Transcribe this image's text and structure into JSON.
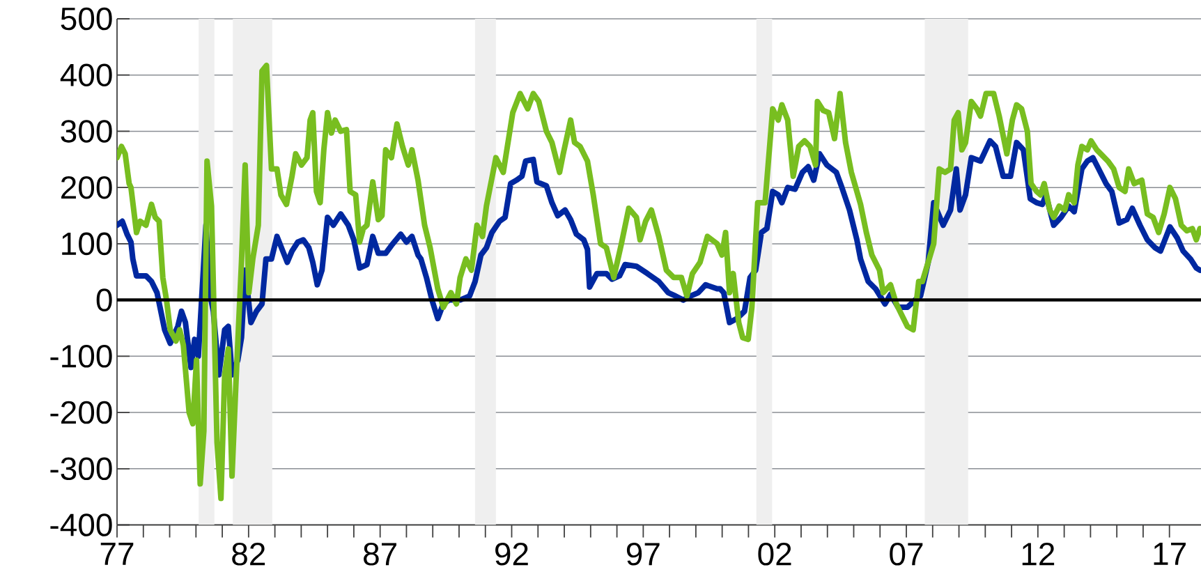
{
  "chart_data": {
    "type": "line",
    "xlim": [
      1977,
      2018.2
    ],
    "ylim": [
      -400,
      500
    ],
    "xticks": [
      {
        "value": 1977,
        "label": "77"
      },
      {
        "value": 1982,
        "label": "82"
      },
      {
        "value": 1987,
        "label": "87"
      },
      {
        "value": 1992,
        "label": "92"
      },
      {
        "value": 1997,
        "label": "97"
      },
      {
        "value": 2002,
        "label": "02"
      },
      {
        "value": 2007,
        "label": "07"
      },
      {
        "value": 2012,
        "label": "12"
      },
      {
        "value": 2017,
        "label": "17"
      }
    ],
    "yticks": [
      -400,
      -300,
      -200,
      -100,
      0,
      100,
      200,
      300,
      400,
      500
    ],
    "grid": "y",
    "bands": [
      {
        "axis": "x",
        "from": 1980.1,
        "to": 1980.7,
        "label": null,
        "color": "#efefef"
      },
      {
        "axis": "x",
        "from": 1981.4,
        "to": 1982.9,
        "label": null,
        "color": "#efefef"
      },
      {
        "axis": "x",
        "from": 1990.6,
        "to": 1991.4,
        "label": null,
        "color": "#efefef"
      },
      {
        "axis": "x",
        "from": 2001.3,
        "to": 2001.9,
        "label": null,
        "color": "#efefef"
      },
      {
        "axis": "x",
        "from": 2007.7,
        "to": 2009.35,
        "label": null,
        "color": "#efefef"
      }
    ],
    "ref_lines": [
      {
        "axis": "y",
        "value": 0,
        "label": null,
        "color": "#000000"
      }
    ],
    "series": [
      {
        "color": "#0028a0",
        "x": [
          1977.0,
          1977.2,
          1977.38,
          1977.53,
          1977.6,
          1977.74,
          1978.1,
          1978.31,
          1978.52,
          1978.81,
          1979.02,
          1979.31,
          1979.45,
          1979.6,
          1979.81,
          1979.95,
          1980.09,
          1980.38,
          1980.52,
          1980.66,
          1980.87,
          1981.09,
          1981.23,
          1981.37,
          1981.59,
          1981.73,
          1981.87,
          1982.09,
          1982.3,
          1982.51,
          1982.66,
          1982.87,
          1983.08,
          1983.3,
          1983.47,
          1983.65,
          1983.87,
          1984.08,
          1984.29,
          1984.44,
          1984.61,
          1984.79,
          1985.0,
          1985.22,
          1985.5,
          1985.79,
          1986.0,
          1986.22,
          1986.5,
          1986.72,
          1986.93,
          1987.21,
          1987.43,
          1987.78,
          1988.0,
          1988.21,
          1988.44,
          1988.55,
          1988.76,
          1988.97,
          1989.19,
          1989.4,
          1989.62,
          1990.04,
          1990.4,
          1990.61,
          1990.83,
          1991.04,
          1991.25,
          1991.54,
          1991.75,
          1991.96,
          1992.18,
          1992.39,
          1992.53,
          1992.82,
          1992.96,
          1993.32,
          1993.53,
          1993.75,
          1994.03,
          1994.24,
          1994.46,
          1994.74,
          1994.88,
          1994.96,
          1995.24,
          1995.6,
          1995.81,
          1996.1,
          1996.31,
          1996.74,
          1997.16,
          1997.59,
          1997.95,
          1998.23,
          1998.52,
          1998.8,
          1999.09,
          1999.37,
          1999.81,
          1999.92,
          2000.06,
          2000.28,
          2000.56,
          2000.85,
          2001.06,
          2001.27,
          2001.49,
          2001.7,
          2001.92,
          2002.13,
          2002.27,
          2002.49,
          2002.77,
          2003.05,
          2003.27,
          2003.48,
          2003.7,
          2003.98,
          2004.34,
          2004.55,
          2004.84,
          2005.12,
          2005.26,
          2005.55,
          2005.83,
          2006.19,
          2006.4,
          2006.69,
          2007.04,
          2007.33,
          2007.54,
          2007.83,
          2008.04,
          2008.4,
          2008.68,
          2008.9,
          2009.04,
          2009.25,
          2009.47,
          2009.82,
          2010.18,
          2010.39,
          2010.68,
          2010.96,
          2011.19,
          2011.45,
          2011.71,
          2011.95,
          2012.17,
          2012.31,
          2012.6,
          2012.88,
          2013.17,
          2013.38,
          2013.67,
          2013.88,
          2014.09,
          2014.31,
          2014.59,
          2014.81,
          2015.09,
          2015.38,
          2015.59,
          2015.88,
          2016.16,
          2016.45,
          2016.66,
          2017.02,
          2017.3,
          2017.52,
          2017.8,
          2018.02,
          2018.16
        ],
        "values": [
          133,
          140,
          117,
          103,
          73,
          43,
          43,
          33,
          13,
          -53,
          -77,
          -47,
          -20,
          -40,
          -120,
          -70,
          -100,
          133,
          13,
          -20,
          -133,
          -53,
          -47,
          -133,
          -107,
          -67,
          53,
          -40,
          -20,
          -7,
          73,
          73,
          113,
          87,
          67,
          87,
          103,
          107,
          93,
          67,
          27,
          53,
          147,
          133,
          153,
          133,
          107,
          57,
          63,
          113,
          83,
          83,
          97,
          117,
          103,
          113,
          80,
          73,
          40,
          0,
          -33,
          -7,
          0,
          0,
          7,
          33,
          80,
          93,
          120,
          140,
          147,
          207,
          213,
          220,
          247,
          250,
          210,
          203,
          173,
          150,
          160,
          143,
          117,
          107,
          90,
          23,
          47,
          47,
          37,
          43,
          63,
          60,
          47,
          33,
          13,
          7,
          0,
          7,
          13,
          27,
          20,
          20,
          13,
          -40,
          -33,
          -20,
          40,
          53,
          120,
          127,
          193,
          187,
          173,
          200,
          197,
          227,
          237,
          213,
          260,
          240,
          227,
          200,
          160,
          107,
          73,
          33,
          20,
          -7,
          10,
          -13,
          -13,
          0,
          7,
          67,
          173,
          133,
          160,
          233,
          160,
          187,
          253,
          247,
          283,
          273,
          220,
          220,
          280,
          267,
          180,
          173,
          170,
          187,
          133,
          147,
          167,
          157,
          233,
          247,
          253,
          233,
          207,
          193,
          137,
          143,
          163,
          133,
          107,
          93,
          87,
          130,
          110,
          87,
          73,
          57,
          53
        ]
      },
      {
        "color": "#78be20",
        "x": [
          1977.0,
          1977.17,
          1977.31,
          1977.46,
          1977.53,
          1977.74,
          1977.88,
          1978.1,
          1978.31,
          1978.45,
          1978.6,
          1978.74,
          1978.88,
          1979.02,
          1979.24,
          1979.38,
          1979.52,
          1979.74,
          1979.88,
          1980.02,
          1980.16,
          1980.3,
          1980.42,
          1980.59,
          1980.8,
          1980.95,
          1981.09,
          1981.23,
          1981.37,
          1981.52,
          1981.73,
          1981.87,
          1982.01,
          1982.16,
          1982.37,
          1982.51,
          1982.68,
          1982.87,
          1983.08,
          1983.23,
          1983.44,
          1983.65,
          1983.79,
          1984.01,
          1984.22,
          1984.34,
          1984.44,
          1984.58,
          1984.72,
          1984.86,
          1985.0,
          1985.15,
          1985.29,
          1985.5,
          1985.72,
          1985.86,
          1986.07,
          1986.22,
          1986.36,
          1986.5,
          1986.72,
          1986.93,
          1987.07,
          1987.21,
          1987.43,
          1987.64,
          1987.85,
          1988.07,
          1988.21,
          1988.44,
          1988.69,
          1988.9,
          1989.19,
          1989.4,
          1989.69,
          1989.9,
          1990.04,
          1990.26,
          1990.47,
          1990.68,
          1990.89,
          1991.04,
          1991.4,
          1991.68,
          1992.04,
          1992.32,
          1992.61,
          1992.82,
          1993.03,
          1993.32,
          1993.53,
          1993.82,
          1993.96,
          1994.24,
          1994.39,
          1994.6,
          1994.88,
          1995.1,
          1995.38,
          1995.6,
          1995.88,
          1996.17,
          1996.45,
          1996.74,
          1996.88,
          1997.09,
          1997.31,
          1997.59,
          1997.88,
          1998.16,
          1998.45,
          1998.66,
          1998.87,
          1999.16,
          1999.44,
          1999.81,
          1999.99,
          2000.13,
          2000.28,
          2000.42,
          2000.63,
          2000.78,
          2000.99,
          2001.13,
          2001.35,
          2001.63,
          2001.92,
          2002.13,
          2002.27,
          2002.49,
          2002.7,
          2002.91,
          2003.13,
          2003.34,
          2003.55,
          2003.62,
          2003.84,
          2004.05,
          2004.27,
          2004.48,
          2004.69,
          2004.91,
          2005.12,
          2005.26,
          2005.48,
          2005.69,
          2005.98,
          2006.12,
          2006.4,
          2006.62,
          2006.83,
          2007.04,
          2007.26,
          2007.47,
          2007.61,
          2007.83,
          2008.04,
          2008.25,
          2008.47,
          2008.68,
          2008.82,
          2008.97,
          2009.11,
          2009.25,
          2009.47,
          2009.68,
          2009.82,
          2010.03,
          2010.32,
          2010.53,
          2010.82,
          2011.03,
          2011.19,
          2011.38,
          2011.6,
          2011.74,
          2011.95,
          2012.1,
          2012.24,
          2012.45,
          2012.6,
          2012.81,
          2013.02,
          2013.17,
          2013.38,
          2013.52,
          2013.67,
          2013.88,
          2014.02,
          2014.24,
          2014.45,
          2014.66,
          2014.88,
          2015.09,
          2015.31,
          2015.45,
          2015.66,
          2015.95,
          2016.16,
          2016.38,
          2016.59,
          2016.8,
          2017.02,
          2017.23,
          2017.45,
          2017.66,
          2017.87,
          2018.02,
          2018.16
        ],
        "values": [
          253,
          273,
          260,
          207,
          200,
          120,
          140,
          133,
          170,
          147,
          140,
          40,
          0,
          -53,
          -73,
          -53,
          -80,
          -200,
          -220,
          -107,
          -327,
          -233,
          247,
          167,
          -253,
          -353,
          -133,
          -87,
          -313,
          -147,
          67,
          240,
          13,
          73,
          133,
          407,
          417,
          233,
          233,
          187,
          170,
          220,
          260,
          240,
          253,
          320,
          333,
          193,
          173,
          267,
          333,
          297,
          320,
          300,
          303,
          193,
          187,
          103,
          127,
          133,
          210,
          143,
          150,
          267,
          253,
          313,
          273,
          240,
          267,
          213,
          133,
          93,
          20,
          -13,
          13,
          -7,
          40,
          73,
          53,
          133,
          113,
          167,
          253,
          227,
          333,
          367,
          340,
          367,
          353,
          300,
          280,
          227,
          260,
          320,
          280,
          273,
          247,
          187,
          100,
          93,
          40,
          100,
          163,
          147,
          107,
          140,
          160,
          113,
          53,
          40,
          40,
          7,
          47,
          67,
          113,
          100,
          80,
          120,
          13,
          47,
          -40,
          -67,
          -70,
          -13,
          173,
          173,
          340,
          320,
          347,
          320,
          220,
          273,
          283,
          273,
          240,
          353,
          337,
          333,
          287,
          367,
          280,
          227,
          193,
          170,
          120,
          80,
          53,
          13,
          27,
          -7,
          -27,
          -47,
          -53,
          33,
          33,
          67,
          100,
          233,
          227,
          233,
          320,
          333,
          267,
          280,
          353,
          340,
          327,
          367,
          367,
          327,
          260,
          320,
          347,
          340,
          300,
          207,
          193,
          187,
          207,
          160,
          147,
          167,
          160,
          187,
          173,
          240,
          273,
          267,
          283,
          267,
          257,
          247,
          233,
          200,
          193,
          233,
          207,
          213,
          153,
          147,
          120,
          153,
          200,
          180,
          133,
          123,
          127,
          107,
          127
        ]
      }
    ]
  }
}
